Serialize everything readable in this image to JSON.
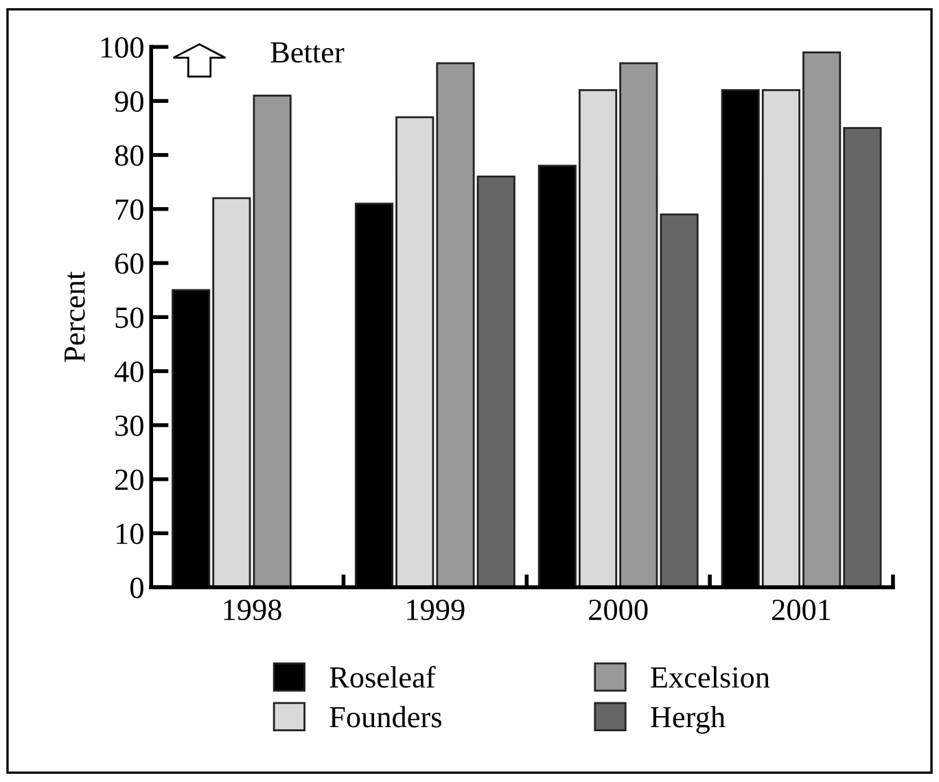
{
  "chart_data": {
    "type": "bar",
    "ylabel": "Percent",
    "annotations": [
      "Better"
    ],
    "categories": [
      "1998",
      "1999",
      "2000",
      "2001"
    ],
    "series": [
      {
        "name": "Roseleaf",
        "color": "#000000",
        "values": [
          55,
          71,
          78,
          92
        ]
      },
      {
        "name": "Founders",
        "color": "#d9d9d9",
        "values": [
          72,
          87,
          92,
          92
        ]
      },
      {
        "name": "Excelsion",
        "color": "#999999",
        "values": [
          91,
          97,
          97,
          99
        ]
      },
      {
        "name": "Hergh",
        "color": "#666666",
        "values": [
          null,
          76,
          69,
          85
        ]
      }
    ],
    "ylim": [
      0,
      100
    ],
    "yticks": [
      0,
      10,
      20,
      30,
      40,
      50,
      60,
      70,
      80,
      90,
      100
    ],
    "grid": false,
    "legend": "bottom"
  }
}
